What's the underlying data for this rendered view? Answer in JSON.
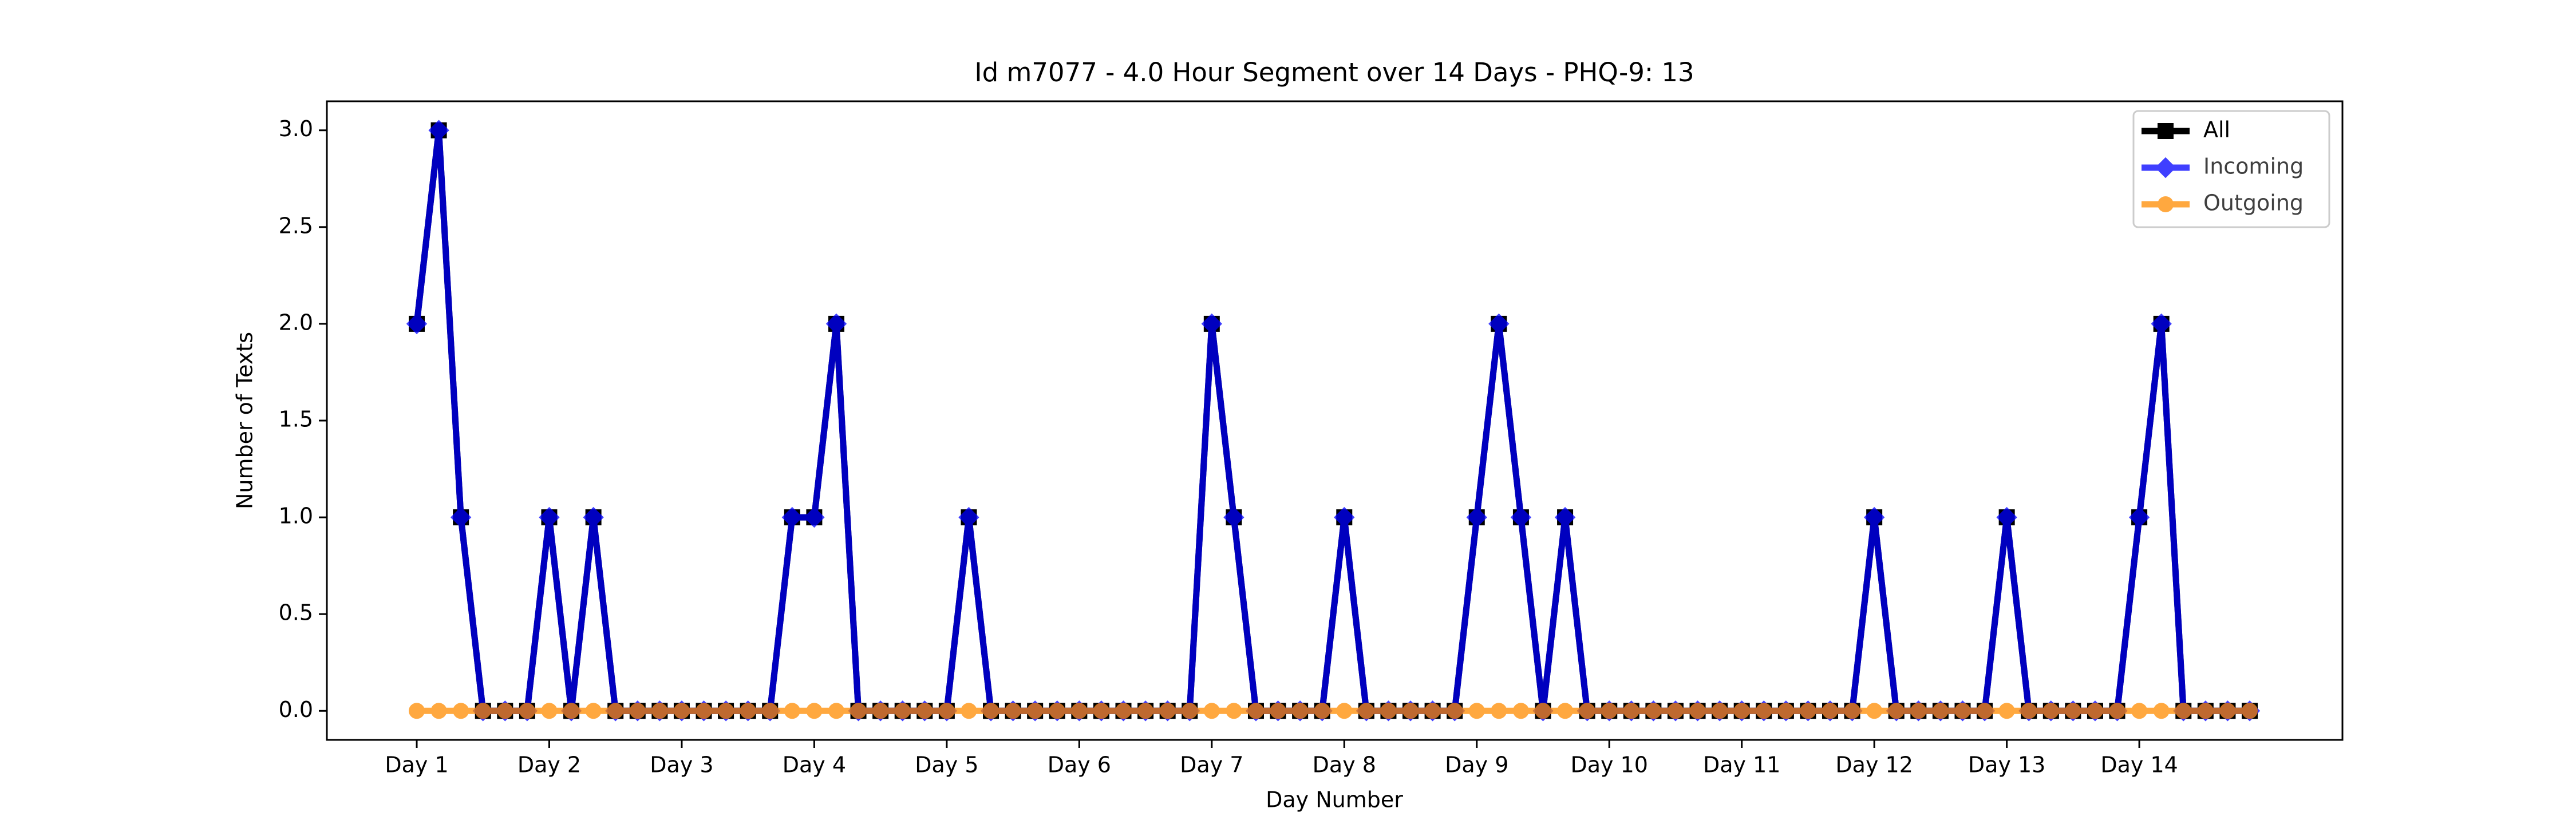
{
  "chart_data": {
    "type": "line",
    "title": "Id m7077 - 4.0 Hour Segment over 14 Days - PHQ-9: 13",
    "xlabel": "Day Number",
    "ylabel": "Number of Texts",
    "categories": [
      "Day 1",
      null,
      null,
      null,
      null,
      null,
      "Day 2",
      null,
      null,
      null,
      null,
      null,
      "Day 3",
      null,
      null,
      null,
      null,
      null,
      "Day 4",
      null,
      null,
      null,
      null,
      null,
      "Day 5",
      null,
      null,
      null,
      null,
      null,
      "Day 6",
      null,
      null,
      null,
      null,
      null,
      "Day 7",
      null,
      null,
      null,
      null,
      null,
      "Day 8",
      null,
      null,
      null,
      null,
      null,
      "Day 9",
      null,
      null,
      null,
      null,
      null,
      "Day 10",
      null,
      null,
      null,
      null,
      null,
      "Day 11",
      null,
      null,
      null,
      null,
      null,
      "Day 12",
      null,
      null,
      null,
      null,
      null,
      "Day 13",
      null,
      null,
      null,
      null,
      null,
      "Day 14",
      null,
      null,
      null,
      null,
      null
    ],
    "series": [
      {
        "name": "All",
        "color": "#000000",
        "marker": "square",
        "values": [
          2,
          3,
          1,
          0,
          0,
          0,
          1,
          0,
          1,
          0,
          0,
          0,
          0,
          0,
          0,
          0,
          0,
          1,
          1,
          2,
          0,
          0,
          0,
          0,
          0,
          1,
          0,
          0,
          0,
          0,
          0,
          0,
          0,
          0,
          0,
          0,
          2,
          1,
          0,
          0,
          0,
          0,
          1,
          0,
          0,
          0,
          0,
          0,
          1,
          2,
          1,
          0,
          1,
          0,
          0,
          0,
          0,
          0,
          0,
          0,
          0,
          0,
          0,
          0,
          0,
          0,
          1,
          0,
          0,
          0,
          0,
          0,
          1,
          0,
          0,
          0,
          0,
          0,
          1,
          2,
          0,
          0,
          0,
          0
        ]
      },
      {
        "name": "Incoming",
        "color": "#0000ff",
        "marker": "diamond",
        "values": [
          2,
          3,
          1,
          0,
          0,
          0,
          1,
          0,
          1,
          0,
          0,
          0,
          0,
          0,
          0,
          0,
          0,
          1,
          1,
          2,
          0,
          0,
          0,
          0,
          0,
          1,
          0,
          0,
          0,
          0,
          0,
          0,
          0,
          0,
          0,
          0,
          2,
          1,
          0,
          0,
          0,
          0,
          1,
          0,
          0,
          0,
          0,
          0,
          1,
          2,
          1,
          0,
          1,
          0,
          0,
          0,
          0,
          0,
          0,
          0,
          0,
          0,
          0,
          0,
          0,
          0,
          1,
          0,
          0,
          0,
          0,
          0,
          1,
          0,
          0,
          0,
          0,
          0,
          1,
          2,
          0,
          0,
          0,
          0
        ]
      },
      {
        "name": "Outgoing",
        "color": "#ff8c00",
        "marker": "circle",
        "values": [
          0,
          0,
          0,
          0,
          0,
          0,
          0,
          0,
          0,
          0,
          0,
          0,
          0,
          0,
          0,
          0,
          0,
          0,
          0,
          0,
          0,
          0,
          0,
          0,
          0,
          0,
          0,
          0,
          0,
          0,
          0,
          0,
          0,
          0,
          0,
          0,
          0,
          0,
          0,
          0,
          0,
          0,
          0,
          0,
          0,
          0,
          0,
          0,
          0,
          0,
          0,
          0,
          0,
          0,
          0,
          0,
          0,
          0,
          0,
          0,
          0,
          0,
          0,
          0,
          0,
          0,
          0,
          0,
          0,
          0,
          0,
          0,
          0,
          0,
          0,
          0,
          0,
          0,
          0,
          0,
          0,
          0,
          0,
          0
        ]
      }
    ],
    "ylim": [
      -0.15,
      3.15
    ],
    "yticks": [
      {
        "value": 0,
        "label": "0.0"
      },
      {
        "value": 0.5,
        "label": "0.5"
      },
      {
        "value": 1,
        "label": "1.0"
      },
      {
        "value": 1.5,
        "label": "1.5"
      },
      {
        "value": 2,
        "label": "2.0"
      },
      {
        "value": 2.5,
        "label": "2.5"
      },
      {
        "value": 3,
        "label": "3.0"
      }
    ],
    "legend": "upper right"
  }
}
